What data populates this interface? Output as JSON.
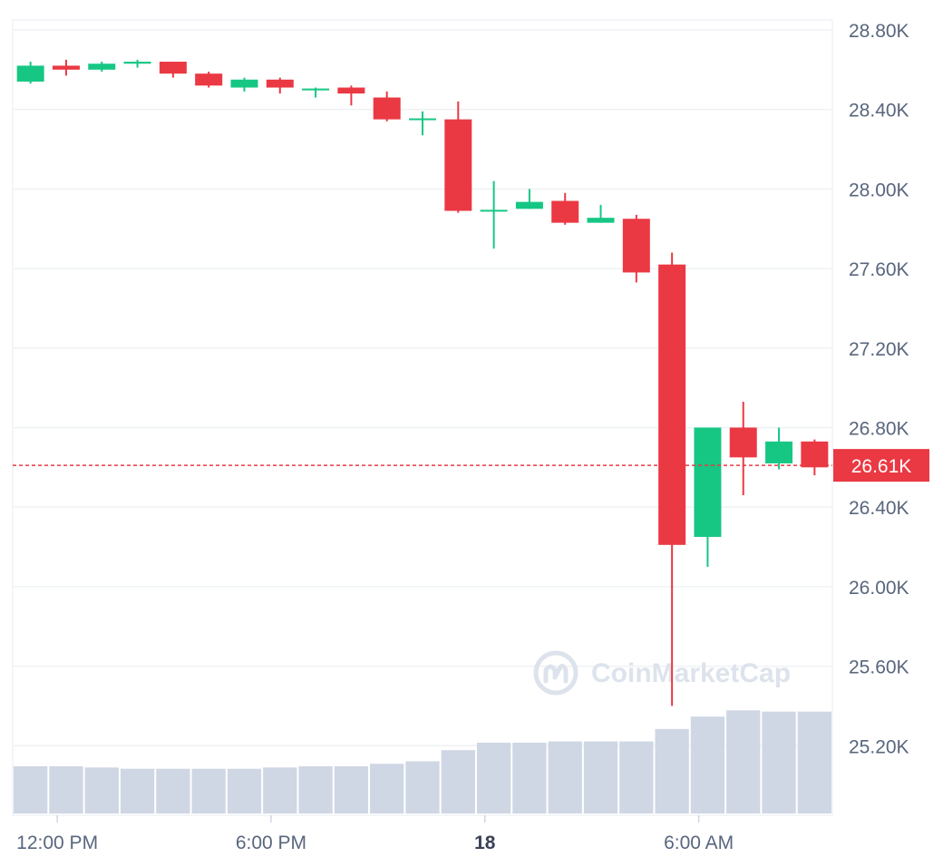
{
  "chart_data": {
    "type": "candlestick",
    "watermark": "CoinMarketCap",
    "y_axis": {
      "min": 24850,
      "max": 28850,
      "ticks": [
        {
          "value": 28800,
          "label": "28.80K"
        },
        {
          "value": 28400,
          "label": "28.40K"
        },
        {
          "value": 28000,
          "label": "28.00K"
        },
        {
          "value": 27600,
          "label": "27.60K"
        },
        {
          "value": 27200,
          "label": "27.20K"
        },
        {
          "value": 26800,
          "label": "26.80K"
        },
        {
          "value": 26400,
          "label": "26.40K"
        },
        {
          "value": 26000,
          "label": "26.00K"
        },
        {
          "value": 25600,
          "label": "25.60K"
        },
        {
          "value": 25200,
          "label": "25.20K"
        }
      ]
    },
    "x_axis": {
      "ticks": [
        {
          "index": 1.25,
          "label": "12:00 PM",
          "bold": false
        },
        {
          "index": 7.25,
          "label": "6:00 PM",
          "bold": false
        },
        {
          "index": 13.25,
          "label": "18",
          "bold": true
        },
        {
          "index": 19.25,
          "label": "6:00 AM",
          "bold": false
        }
      ]
    },
    "current_price": {
      "value": 26610,
      "label": "26.61K"
    },
    "colors": {
      "up": "#16c784",
      "down": "#ea3943",
      "volume": "#cfd6e4",
      "grid": "#eff2f5"
    },
    "volume_max": 100,
    "candles": [
      {
        "o": 28540,
        "h": 28640,
        "l": 28530,
        "c": 28620,
        "v": 38
      },
      {
        "o": 28620,
        "h": 28650,
        "l": 28570,
        "c": 28600,
        "v": 38
      },
      {
        "o": 28600,
        "h": 28640,
        "l": 28590,
        "c": 28630,
        "v": 37
      },
      {
        "o": 28630,
        "h": 28650,
        "l": 28610,
        "c": 28640,
        "v": 36
      },
      {
        "o": 28640,
        "h": 28640,
        "l": 28560,
        "c": 28580,
        "v": 36
      },
      {
        "o": 28580,
        "h": 28590,
        "l": 28510,
        "c": 28520,
        "v": 36
      },
      {
        "o": 28510,
        "h": 28560,
        "l": 28490,
        "c": 28550,
        "v": 36
      },
      {
        "o": 28550,
        "h": 28560,
        "l": 28480,
        "c": 28510,
        "v": 37
      },
      {
        "o": 28500,
        "h": 28510,
        "l": 28460,
        "c": 28505,
        "v": 38
      },
      {
        "o": 28510,
        "h": 28520,
        "l": 28420,
        "c": 28480,
        "v": 38
      },
      {
        "o": 28460,
        "h": 28490,
        "l": 28340,
        "c": 28350,
        "v": 40
      },
      {
        "o": 28350,
        "h": 28390,
        "l": 28270,
        "c": 28355,
        "v": 42
      },
      {
        "o": 28350,
        "h": 28440,
        "l": 27880,
        "c": 27890,
        "v": 51
      },
      {
        "o": 27890,
        "h": 28040,
        "l": 27700,
        "c": 27895,
        "v": 57
      },
      {
        "o": 27900,
        "h": 28000,
        "l": 27900,
        "c": 27935,
        "v": 57
      },
      {
        "o": 27940,
        "h": 27980,
        "l": 27820,
        "c": 27830,
        "v": 58
      },
      {
        "o": 27830,
        "h": 27920,
        "l": 27830,
        "c": 27855,
        "v": 58
      },
      {
        "o": 27850,
        "h": 27870,
        "l": 27530,
        "c": 27580,
        "v": 58
      },
      {
        "o": 27620,
        "h": 27680,
        "l": 25400,
        "c": 26210,
        "v": 68
      },
      {
        "o": 26250,
        "h": 26800,
        "l": 26100,
        "c": 26800,
        "v": 78
      },
      {
        "o": 26800,
        "h": 26930,
        "l": 26460,
        "c": 26650,
        "v": 83
      },
      {
        "o": 26620,
        "h": 26800,
        "l": 26590,
        "c": 26730,
        "v": 82
      },
      {
        "o": 26730,
        "h": 26740,
        "l": 26560,
        "c": 26600,
        "v": 82
      }
    ]
  }
}
